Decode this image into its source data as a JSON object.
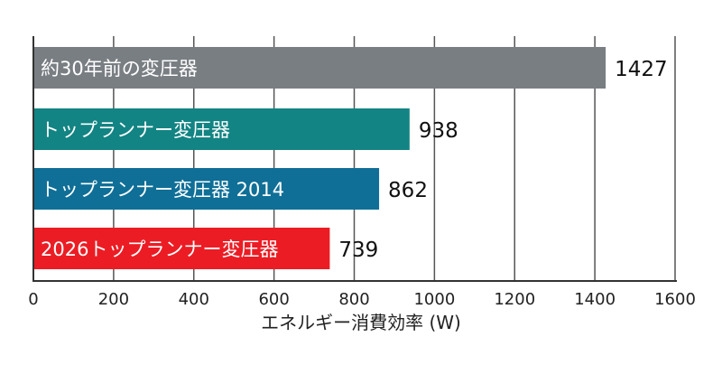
{
  "chart_data": {
    "type": "bar",
    "orientation": "horizontal",
    "categories": [
      "約30年前の変圧器",
      "トップランナー変圧器",
      "トップランナー変圧器 2014",
      "2026トップランナー変圧器"
    ],
    "values": [
      1427,
      938,
      862,
      739
    ],
    "colors": [
      "#797e83",
      "#128483",
      "#0f6f97",
      "#ec1c24"
    ],
    "xlabel": "エネルギー消費効率 (W)",
    "xlim": [
      0,
      1600
    ],
    "xticks": [
      0,
      200,
      400,
      600,
      800,
      1000,
      1200,
      1400,
      1600
    ],
    "grid": true,
    "legend": "none"
  }
}
